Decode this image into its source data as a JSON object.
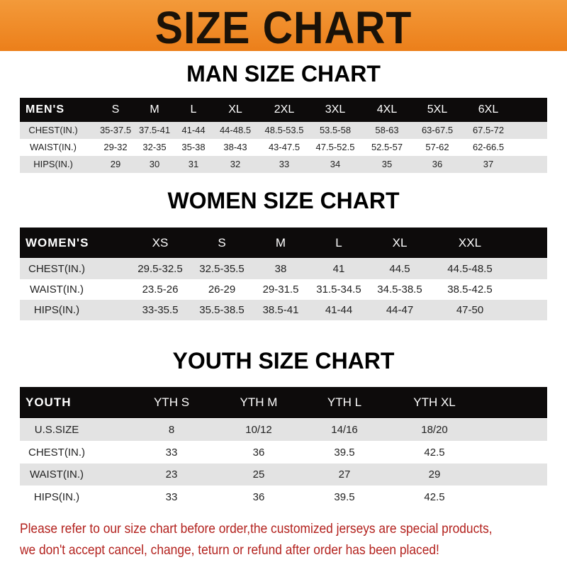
{
  "banner": {
    "title": "SIZE CHART",
    "color": "#ee8a26"
  },
  "men": {
    "title": "MAN SIZE CHART",
    "header": [
      "MEN'S",
      "S",
      "M",
      "L",
      "XL",
      "2XL",
      "3XL",
      "4XL",
      "5XL",
      "6XL"
    ],
    "rows": [
      [
        "CHEST(IN.)",
        "35-37.5",
        "37.5-41",
        "41-44",
        "44-48.5",
        "48.5-53.5",
        "53.5-58",
        "58-63",
        "63-67.5",
        "67.5-72"
      ],
      [
        "WAIST(IN.)",
        "29-32",
        "32-35",
        "35-38",
        "38-43",
        "43-47.5",
        "47.5-52.5",
        "52.5-57",
        "57-62",
        "62-66.5"
      ],
      [
        "HIPS(IN.)",
        "29",
        "30",
        "31",
        "32",
        "33",
        "34",
        "35",
        "36",
        "37"
      ]
    ]
  },
  "women": {
    "title": "WOMEN SIZE CHART",
    "header": [
      "WOMEN'S",
      "XS",
      "S",
      "M",
      "L",
      "XL",
      "XXL"
    ],
    "rows": [
      [
        "CHEST(IN.)",
        "29.5-32.5",
        "32.5-35.5",
        "38",
        "41",
        "44.5",
        "44.5-48.5"
      ],
      [
        "WAIST(IN.)",
        "23.5-26",
        "26-29",
        "29-31.5",
        "31.5-34.5",
        "34.5-38.5",
        "38.5-42.5"
      ],
      [
        "HIPS(IN.)",
        "33-35.5",
        "35.5-38.5",
        "38.5-41",
        "41-44",
        "44-47",
        "47-50"
      ]
    ]
  },
  "youth": {
    "title": "YOUTH SIZE CHART",
    "header": [
      "YOUTH",
      "YTH S",
      "YTH M",
      "YTH L",
      "YTH XL"
    ],
    "rows": [
      [
        "U.S.SIZE",
        "8",
        "10/12",
        "14/16",
        "18/20"
      ],
      [
        "CHEST(IN.)",
        "33",
        "36",
        "39.5",
        "42.5"
      ],
      [
        "WAIST(IN.)",
        "23",
        "25",
        "27",
        "29"
      ],
      [
        "HIPS(IN.)",
        "33",
        "36",
        "39.5",
        "42.5"
      ]
    ]
  },
  "note": {
    "line1": "Please refer to our size chart before order,the customized jerseys are special products,",
    "line2": "we don't accept cancel, change, teturn or refund after order has been placed!",
    "color": "#b3221e"
  }
}
